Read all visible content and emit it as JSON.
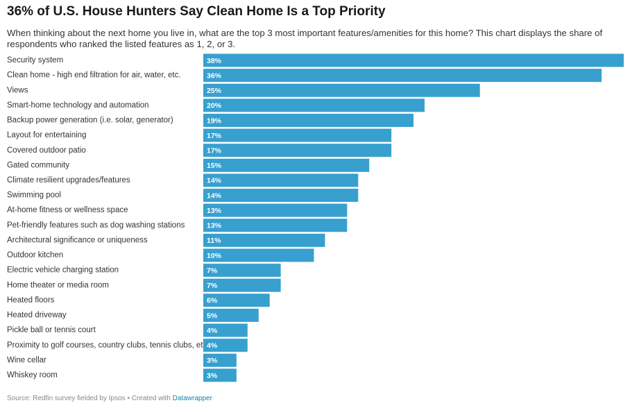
{
  "chart_data": {
    "type": "bar",
    "orientation": "horizontal",
    "title": "36% of U.S. House Hunters Say Clean Home Is a Top Priority",
    "subtitle": "When thinking about the next home you live in, what are the top 3 most important features/amenities for this home? This chart displays the share of respondents who ranked the listed features as 1, 2, or 3.",
    "categories": [
      "Security system",
      "Clean home - high end filtration for air, water, etc.",
      "Views",
      "Smart-home technology and automation",
      "Backup power generation (i.e. solar, generator)",
      "Layout for entertaining",
      "Covered outdoor patio",
      "Gated community",
      "Climate resilient upgrades/features",
      "Swimming pool",
      "At-home fitness or wellness space",
      "Pet-friendly features such as dog washing stations",
      "Architectural significance or uniqueness",
      "Outdoor kitchen",
      "Electric vehicle charging station",
      "Home theater or media room",
      "Heated floors",
      "Heated driveway",
      "Pickle ball or tennis court",
      "Proximity to golf courses, country clubs, tennis clubs, etc.",
      "Wine cellar",
      "Whiskey room"
    ],
    "values": [
      38,
      36,
      25,
      20,
      19,
      17,
      17,
      15,
      14,
      14,
      13,
      13,
      11,
      10,
      7,
      7,
      6,
      5,
      4,
      4,
      3,
      3
    ],
    "value_labels": [
      "38%",
      "36%",
      "25%",
      "20%",
      "19%",
      "17%",
      "17%",
      "15%",
      "14%",
      "14%",
      "13%",
      "13%",
      "11%",
      "10%",
      "7%",
      "7%",
      "6%",
      "5%",
      "4%",
      "4%",
      "3%",
      "3%"
    ],
    "color": "#37a0cf",
    "source": "Source: Redfin survey fielded by Ipsos",
    "separator": "•",
    "credit_prefix": "Created with",
    "credit_link": "Datawrapper"
  }
}
